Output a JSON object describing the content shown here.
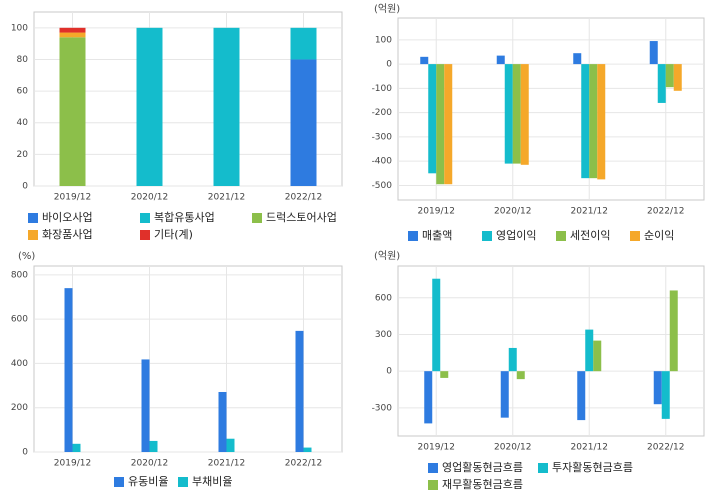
{
  "chart_data": [
    {
      "type": "bar",
      "stacked": true,
      "categories": [
        "2019/12",
        "2020/12",
        "2021/12",
        "2022/12"
      ],
      "series": [
        {
          "name": "바이오사업",
          "color": "#2e7be0",
          "values": [
            0,
            0,
            0,
            80
          ]
        },
        {
          "name": "복합유통사업",
          "color": "#14bccc",
          "values": [
            0,
            100,
            100,
            20
          ]
        },
        {
          "name": "드럭스토어사업",
          "color": "#8cbf4a",
          "values": [
            94,
            0,
            0,
            0
          ]
        },
        {
          "name": "화장품사업",
          "color": "#f5a82a",
          "values": [
            3,
            0,
            0,
            0
          ]
        },
        {
          "name": "기타(계)",
          "color": "#e0302a",
          "values": [
            3,
            0,
            0,
            0
          ]
        }
      ],
      "ylim": [
        0,
        110
      ],
      "yticks": [
        0,
        20,
        40,
        60,
        80,
        100
      ],
      "grid": true
    },
    {
      "type": "bar",
      "stacked": false,
      "y_unit": "(억원)",
      "categories": [
        "2019/12",
        "2020/12",
        "2021/12",
        "2022/12"
      ],
      "series": [
        {
          "name": "매출액",
          "color": "#2e7be0",
          "values": [
            30,
            35,
            45,
            95
          ]
        },
        {
          "name": "영업이익",
          "color": "#14bccc",
          "values": [
            -450,
            -410,
            -470,
            -160
          ]
        },
        {
          "name": "세전이익",
          "color": "#8cbf4a",
          "values": [
            -495,
            -410,
            -470,
            -95
          ]
        },
        {
          "name": "순이익",
          "color": "#f5a82a",
          "values": [
            -495,
            -415,
            -475,
            -110
          ]
        }
      ],
      "ylim": [
        -560,
        190
      ],
      "yticks": [
        -500,
        -400,
        -300,
        -200,
        -100,
        0,
        100
      ],
      "grid": true
    },
    {
      "type": "bar",
      "stacked": false,
      "y_unit": "(%)",
      "categories": [
        "2019/12",
        "2020/12",
        "2021/12",
        "2022/12"
      ],
      "series": [
        {
          "name": "유동비율",
          "color": "#2e7be0",
          "values": [
            740,
            418,
            271,
            547
          ]
        },
        {
          "name": "부채비율",
          "color": "#14bccc",
          "values": [
            37,
            50,
            60,
            20
          ]
        }
      ],
      "ylim": [
        0,
        840
      ],
      "yticks": [
        0,
        200,
        400,
        600,
        800
      ],
      "grid": true
    },
    {
      "type": "bar",
      "stacked": false,
      "y_unit": "(억원)",
      "categories": [
        "2019/12",
        "2020/12",
        "2021/12",
        "2022/12"
      ],
      "series": [
        {
          "name": "영업활동현금흐름",
          "color": "#2e7be0",
          "values": [
            -427,
            -380,
            -400,
            -270
          ]
        },
        {
          "name": "투자활동현금흐름",
          "color": "#14bccc",
          "values": [
            756,
            190,
            340,
            -390
          ]
        },
        {
          "name": "재무활동현금흐름",
          "color": "#8cbf4a",
          "values": [
            -55,
            -65,
            250,
            660
          ]
        }
      ],
      "ylim": [
        -530,
        860
      ],
      "yticks": [
        -300,
        0,
        300,
        600
      ],
      "grid": true
    }
  ]
}
